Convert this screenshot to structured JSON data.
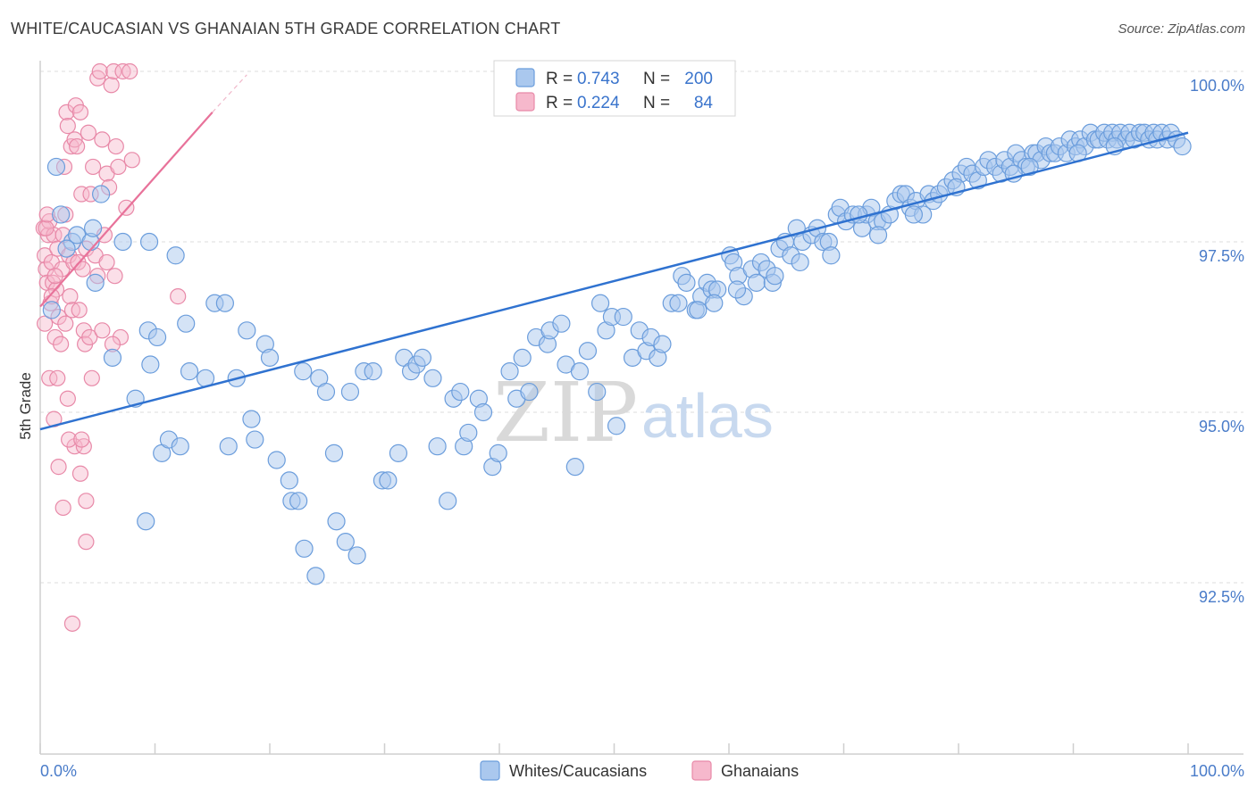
{
  "title": "WHITE/CAUCASIAN VS GHANAIAN 5TH GRADE CORRELATION CHART",
  "source": "Source: ZipAtlas.com",
  "watermark": {
    "zip": "ZIP",
    "atlas": "atlas"
  },
  "colors": {
    "blue_fill": "#aac8ee",
    "blue_stroke": "#6b9ddc",
    "blue_line": "#2f72d0",
    "pink_fill": "#f6b8cc",
    "pink_stroke": "#e889a8",
    "pink_line": "#e8729a",
    "tick_label": "#4a7cc9",
    "grid": "#dcdcdc"
  },
  "legend": {
    "r_label": "R =",
    "n_label": "N =",
    "rows": [
      {
        "series": "Whites/Caucasians",
        "r": "0.743",
        "n": "200"
      },
      {
        "series": "Ghanaians",
        "r": "0.224",
        "n": "84"
      }
    ]
  },
  "chart_data": {
    "type": "scatter",
    "title": "WHITE/CAUCASIAN VS GHANAIAN 5TH GRADE CORRELATION CHART",
    "xlabel": "",
    "ylabel": "5th Grade",
    "xlim": [
      0,
      100
    ],
    "ylim": [
      90.0,
      100.4
    ],
    "x_tick_labels": [
      "0.0%",
      "100.0%"
    ],
    "y_ticks": [
      92.5,
      95.0,
      97.5,
      100.0
    ],
    "y_tick_labels": [
      "92.5%",
      "95.0%",
      "97.5%",
      "100.0%"
    ],
    "series": [
      {
        "name": "Whites/Caucasians",
        "trend": {
          "x": [
            0,
            100
          ],
          "y": [
            94.75,
            99.1
          ]
        },
        "points": [
          [
            1.4,
            98.6
          ],
          [
            1.8,
            97.9
          ],
          [
            2.8,
            97.5
          ],
          [
            3.2,
            97.6
          ],
          [
            4.4,
            97.5
          ],
          [
            5.3,
            98.2
          ],
          [
            2.3,
            97.4
          ],
          [
            1.0,
            96.5
          ],
          [
            4.6,
            97.7
          ],
          [
            7.2,
            97.5
          ],
          [
            9.5,
            97.5
          ],
          [
            11.8,
            97.3
          ],
          [
            4.8,
            96.9
          ],
          [
            6.3,
            95.8
          ],
          [
            8.3,
            95.2
          ],
          [
            9.2,
            93.4
          ],
          [
            9.4,
            96.2
          ],
          [
            9.6,
            95.7
          ],
          [
            10.2,
            96.1
          ],
          [
            10.6,
            94.4
          ],
          [
            11.2,
            94.6
          ],
          [
            12.2,
            94.5
          ],
          [
            12.7,
            96.3
          ],
          [
            13.0,
            95.6
          ],
          [
            14.4,
            95.5
          ],
          [
            15.2,
            96.6
          ],
          [
            16.1,
            96.6
          ],
          [
            16.4,
            94.5
          ],
          [
            17.1,
            95.5
          ],
          [
            18.0,
            96.2
          ],
          [
            18.4,
            94.9
          ],
          [
            18.7,
            94.6
          ],
          [
            19.6,
            96.0
          ],
          [
            20.0,
            95.8
          ],
          [
            20.6,
            94.3
          ],
          [
            21.7,
            94.0
          ],
          [
            21.9,
            93.7
          ],
          [
            22.5,
            93.7
          ],
          [
            22.9,
            95.6
          ],
          [
            23.0,
            93.0
          ],
          [
            24.0,
            92.6
          ],
          [
            24.3,
            95.5
          ],
          [
            24.9,
            95.3
          ],
          [
            25.6,
            94.4
          ],
          [
            25.8,
            93.4
          ],
          [
            26.6,
            93.1
          ],
          [
            27.0,
            95.3
          ],
          [
            27.6,
            92.9
          ],
          [
            28.2,
            95.6
          ],
          [
            29.0,
            95.6
          ],
          [
            29.8,
            94.0
          ],
          [
            30.3,
            94.0
          ],
          [
            31.2,
            94.4
          ],
          [
            31.7,
            95.8
          ],
          [
            32.3,
            95.6
          ],
          [
            32.8,
            95.7
          ],
          [
            33.3,
            95.8
          ],
          [
            34.2,
            95.5
          ],
          [
            34.6,
            94.5
          ],
          [
            35.5,
            93.7
          ],
          [
            36.0,
            95.2
          ],
          [
            36.6,
            95.3
          ],
          [
            36.9,
            94.5
          ],
          [
            37.3,
            94.7
          ],
          [
            38.2,
            95.2
          ],
          [
            38.6,
            95.0
          ],
          [
            39.4,
            94.2
          ],
          [
            39.9,
            94.4
          ],
          [
            40.9,
            95.6
          ],
          [
            41.5,
            95.2
          ],
          [
            42.0,
            95.8
          ],
          [
            42.6,
            95.3
          ],
          [
            43.2,
            96.1
          ],
          [
            44.2,
            96.0
          ],
          [
            44.4,
            96.2
          ],
          [
            45.4,
            96.3
          ],
          [
            45.8,
            95.7
          ],
          [
            46.6,
            94.2
          ],
          [
            47.0,
            95.6
          ],
          [
            47.7,
            95.9
          ],
          [
            48.5,
            95.3
          ],
          [
            48.8,
            96.6
          ],
          [
            49.3,
            96.2
          ],
          [
            49.8,
            96.4
          ],
          [
            50.2,
            94.8
          ],
          [
            50.8,
            96.4
          ],
          [
            51.6,
            95.8
          ],
          [
            52.2,
            96.2
          ],
          [
            52.8,
            95.9
          ],
          [
            53.2,
            96.1
          ],
          [
            53.8,
            95.8
          ],
          [
            54.2,
            96.0
          ],
          [
            55.0,
            96.6
          ],
          [
            55.6,
            96.6
          ],
          [
            55.9,
            97.0
          ],
          [
            56.3,
            96.9
          ],
          [
            57.1,
            96.5
          ],
          [
            57.6,
            96.7
          ],
          [
            58.1,
            96.9
          ],
          [
            58.5,
            96.8
          ],
          [
            59.0,
            96.8
          ],
          [
            60.1,
            97.3
          ],
          [
            60.4,
            97.2
          ],
          [
            60.8,
            97.0
          ],
          [
            61.3,
            96.7
          ],
          [
            62.0,
            97.1
          ],
          [
            62.4,
            96.9
          ],
          [
            62.8,
            97.2
          ],
          [
            63.3,
            97.1
          ],
          [
            63.8,
            96.9
          ],
          [
            64.4,
            97.4
          ],
          [
            64.9,
            97.5
          ],
          [
            65.4,
            97.3
          ],
          [
            65.9,
            97.7
          ],
          [
            66.4,
            97.5
          ],
          [
            67.2,
            97.6
          ],
          [
            67.7,
            97.7
          ],
          [
            68.2,
            97.5
          ],
          [
            68.7,
            97.5
          ],
          [
            69.4,
            97.9
          ],
          [
            69.7,
            98.0
          ],
          [
            70.2,
            97.8
          ],
          [
            70.8,
            97.9
          ],
          [
            71.6,
            97.7
          ],
          [
            72.0,
            97.9
          ],
          [
            72.4,
            98.0
          ],
          [
            72.9,
            97.8
          ],
          [
            73.4,
            97.8
          ],
          [
            74.0,
            97.9
          ],
          [
            74.5,
            98.1
          ],
          [
            75.0,
            98.2
          ],
          [
            75.4,
            98.2
          ],
          [
            75.8,
            98.0
          ],
          [
            76.3,
            98.1
          ],
          [
            76.9,
            97.9
          ],
          [
            77.4,
            98.2
          ],
          [
            77.8,
            98.1
          ],
          [
            78.3,
            98.2
          ],
          [
            78.9,
            98.3
          ],
          [
            79.5,
            98.4
          ],
          [
            80.2,
            98.5
          ],
          [
            80.7,
            98.6
          ],
          [
            81.2,
            98.5
          ],
          [
            81.7,
            98.4
          ],
          [
            82.2,
            98.6
          ],
          [
            82.6,
            98.7
          ],
          [
            83.2,
            98.6
          ],
          [
            83.7,
            98.5
          ],
          [
            84.0,
            98.7
          ],
          [
            84.5,
            98.6
          ],
          [
            85.0,
            98.8
          ],
          [
            85.5,
            98.7
          ],
          [
            85.9,
            98.6
          ],
          [
            86.5,
            98.8
          ],
          [
            86.8,
            98.8
          ],
          [
            87.2,
            98.7
          ],
          [
            87.6,
            98.9
          ],
          [
            88.0,
            98.8
          ],
          [
            88.4,
            98.8
          ],
          [
            88.8,
            98.9
          ],
          [
            89.4,
            98.8
          ],
          [
            89.7,
            99.0
          ],
          [
            90.2,
            98.9
          ],
          [
            90.6,
            99.0
          ],
          [
            91.0,
            98.9
          ],
          [
            91.5,
            99.1
          ],
          [
            91.9,
            99.0
          ],
          [
            92.2,
            99.0
          ],
          [
            92.7,
            99.1
          ],
          [
            93.0,
            99.0
          ],
          [
            93.4,
            99.1
          ],
          [
            93.8,
            99.0
          ],
          [
            94.1,
            99.1
          ],
          [
            94.6,
            99.0
          ],
          [
            94.9,
            99.1
          ],
          [
            95.3,
            99.0
          ],
          [
            95.8,
            99.1
          ],
          [
            96.2,
            99.1
          ],
          [
            96.6,
            99.0
          ],
          [
            97.0,
            99.1
          ],
          [
            97.3,
            99.0
          ],
          [
            97.7,
            99.1
          ],
          [
            98.2,
            99.0
          ],
          [
            98.5,
            99.1
          ],
          [
            99.0,
            99.0
          ],
          [
            99.5,
            98.9
          ],
          [
            93.6,
            98.9
          ],
          [
            90.4,
            98.8
          ],
          [
            86.2,
            98.6
          ],
          [
            84.8,
            98.5
          ],
          [
            79.8,
            98.3
          ],
          [
            76.1,
            97.9
          ],
          [
            73.0,
            97.6
          ],
          [
            71.3,
            97.9
          ],
          [
            68.9,
            97.3
          ],
          [
            66.2,
            97.2
          ],
          [
            64.0,
            97.0
          ],
          [
            60.7,
            96.8
          ],
          [
            58.7,
            96.6
          ],
          [
            57.3,
            96.5
          ]
        ]
      },
      {
        "name": "Ghanaians",
        "trend": {
          "x": [
            0,
            15
          ],
          "y": [
            96.55,
            99.4
          ],
          "dashed_extension": {
            "x": [
              15,
              18
            ],
            "y": [
              99.4,
              99.95
            ]
          }
        },
        "points": [
          [
            0.3,
            97.7
          ],
          [
            0.4,
            97.3
          ],
          [
            0.5,
            97.1
          ],
          [
            0.6,
            96.9
          ],
          [
            0.4,
            96.3
          ],
          [
            0.7,
            97.6
          ],
          [
            0.8,
            97.8
          ],
          [
            0.9,
            96.6
          ],
          [
            1.0,
            97.2
          ],
          [
            1.1,
            96.9
          ],
          [
            1.2,
            97.6
          ],
          [
            1.3,
            96.1
          ],
          [
            1.4,
            96.8
          ],
          [
            1.5,
            97.4
          ],
          [
            1.6,
            96.4
          ],
          [
            1.8,
            96.0
          ],
          [
            1.9,
            97.1
          ],
          [
            2.0,
            97.6
          ],
          [
            2.1,
            98.6
          ],
          [
            2.2,
            97.9
          ],
          [
            2.3,
            99.4
          ],
          [
            2.4,
            99.2
          ],
          [
            2.5,
            97.3
          ],
          [
            2.6,
            96.7
          ],
          [
            2.7,
            98.9
          ],
          [
            2.8,
            96.5
          ],
          [
            2.9,
            97.2
          ],
          [
            3.0,
            99.0
          ],
          [
            3.1,
            99.5
          ],
          [
            3.2,
            98.9
          ],
          [
            3.3,
            97.2
          ],
          [
            3.4,
            96.5
          ],
          [
            3.5,
            99.4
          ],
          [
            3.6,
            98.2
          ],
          [
            3.7,
            97.1
          ],
          [
            3.8,
            96.2
          ],
          [
            3.9,
            96.0
          ],
          [
            4.0,
            97.4
          ],
          [
            4.2,
            99.1
          ],
          [
            4.4,
            98.2
          ],
          [
            4.6,
            98.6
          ],
          [
            4.8,
            97.3
          ],
          [
            5.0,
            99.9
          ],
          [
            5.2,
            100.0
          ],
          [
            5.4,
            99.0
          ],
          [
            5.6,
            97.6
          ],
          [
            5.8,
            98.5
          ],
          [
            6.0,
            98.3
          ],
          [
            6.2,
            99.8
          ],
          [
            6.4,
            100.0
          ],
          [
            6.6,
            98.9
          ],
          [
            6.8,
            98.6
          ],
          [
            7.0,
            96.1
          ],
          [
            7.2,
            100.0
          ],
          [
            7.5,
            98.0
          ],
          [
            0.8,
            95.5
          ],
          [
            1.2,
            94.9
          ],
          [
            1.6,
            94.2
          ],
          [
            2.0,
            93.6
          ],
          [
            2.4,
            95.2
          ],
          [
            3.0,
            94.5
          ],
          [
            3.5,
            94.1
          ],
          [
            3.8,
            94.5
          ],
          [
            4.0,
            93.7
          ],
          [
            4.3,
            96.1
          ],
          [
            4.5,
            95.5
          ],
          [
            5.0,
            97.0
          ],
          [
            5.4,
            96.2
          ],
          [
            5.8,
            97.2
          ],
          [
            6.3,
            96.0
          ],
          [
            1.5,
            95.5
          ],
          [
            2.2,
            96.3
          ],
          [
            0.5,
            97.7
          ],
          [
            0.6,
            97.9
          ],
          [
            1.0,
            96.7
          ],
          [
            1.3,
            97.0
          ],
          [
            2.5,
            94.6
          ],
          [
            3.6,
            94.6
          ],
          [
            4.0,
            93.1
          ],
          [
            2.8,
            91.9
          ],
          [
            7.8,
            100.0
          ],
          [
            8.0,
            98.7
          ],
          [
            12.0,
            96.7
          ],
          [
            6.5,
            97.0
          ]
        ]
      }
    ]
  },
  "bottom_legend": [
    "Whites/Caucasians",
    "Ghanaians"
  ]
}
